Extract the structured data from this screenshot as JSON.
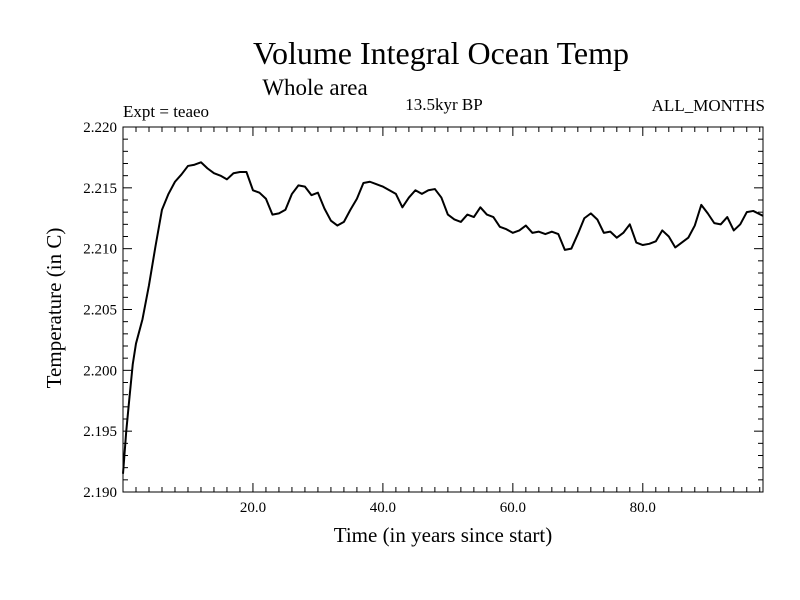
{
  "chart_data": {
    "type": "line",
    "title": "Volume Integral Ocean Temp",
    "subtitle": "Whole area",
    "experiment_label": "Expt = teaeo",
    "period_label": "13.5kyr BP",
    "months_label": "ALL_MONTHS",
    "xlabel": "Time (in years since start)",
    "ylabel": "Temperature (in C)",
    "xlim": [
      0,
      98.5
    ],
    "ylim": [
      2.19,
      2.22
    ],
    "x_ticks": [
      20,
      40,
      60,
      80
    ],
    "x_tick_labels": [
      "20.0",
      "40.0",
      "60.0",
      "80.0"
    ],
    "y_ticks": [
      2.19,
      2.195,
      2.2,
      2.205,
      2.21,
      2.215,
      2.22
    ],
    "y_tick_labels": [
      "2.190",
      "2.195",
      "2.200",
      "2.205",
      "2.210",
      "2.215",
      "2.220"
    ],
    "series": [
      {
        "name": "Temperature",
        "x": [
          0,
          0.5,
          1,
          1.5,
          2,
          3,
          4,
          5,
          6,
          7,
          8,
          9,
          10,
          11,
          12,
          13,
          14,
          15,
          16,
          17,
          18,
          19,
          20,
          21,
          22,
          23,
          24,
          25,
          26,
          27,
          28,
          29,
          30,
          31,
          32,
          33,
          34,
          35,
          36,
          37,
          38,
          39,
          40,
          41,
          42,
          43,
          44,
          45,
          46,
          47,
          48,
          49,
          50,
          51,
          52,
          53,
          54,
          55,
          56,
          57,
          58,
          59,
          60,
          61,
          62,
          63,
          64,
          65,
          66,
          67,
          68,
          69,
          70,
          71,
          72,
          73,
          74,
          75,
          76,
          77,
          78,
          79,
          80,
          81,
          82,
          83,
          84,
          85,
          86,
          87,
          88,
          89,
          90,
          91,
          92,
          93,
          94,
          95,
          96,
          97,
          98.5
        ],
        "values": [
          2.1915,
          2.195,
          2.1978,
          2.2005,
          2.2022,
          2.2042,
          2.207,
          2.2102,
          2.2132,
          2.2145,
          2.2155,
          2.2161,
          2.2168,
          2.2169,
          2.2171,
          2.2166,
          2.2162,
          2.216,
          2.2157,
          2.2162,
          2.2163,
          2.2163,
          2.2148,
          2.2146,
          2.2141,
          2.2128,
          2.2129,
          2.2132,
          2.2145,
          2.2152,
          2.2151,
          2.2144,
          2.2146,
          2.2133,
          2.2123,
          2.2119,
          2.2122,
          2.2132,
          2.2141,
          2.2154,
          2.2155,
          2.2153,
          2.2151,
          2.2148,
          2.2145,
          2.2134,
          2.2142,
          2.2148,
          2.2145,
          2.2148,
          2.2149,
          2.2142,
          2.2128,
          2.2124,
          2.2122,
          2.2128,
          2.2126,
          2.2134,
          2.2128,
          2.2126,
          2.2118,
          2.2116,
          2.2113,
          2.2115,
          2.2119,
          2.2113,
          2.2114,
          2.2112,
          2.2114,
          2.2112,
          2.2099,
          2.21,
          2.2112,
          2.2125,
          2.2129,
          2.2124,
          2.2113,
          2.2114,
          2.2109,
          2.2113,
          2.212,
          2.2105,
          2.2103,
          2.2104,
          2.2106,
          2.2115,
          2.211,
          2.2101,
          2.2105,
          2.2109,
          2.2119,
          2.2136,
          2.2129,
          2.2121,
          2.212,
          2.2126,
          2.2115,
          2.212,
          2.213,
          2.2131,
          2.2127
        ]
      }
    ]
  }
}
